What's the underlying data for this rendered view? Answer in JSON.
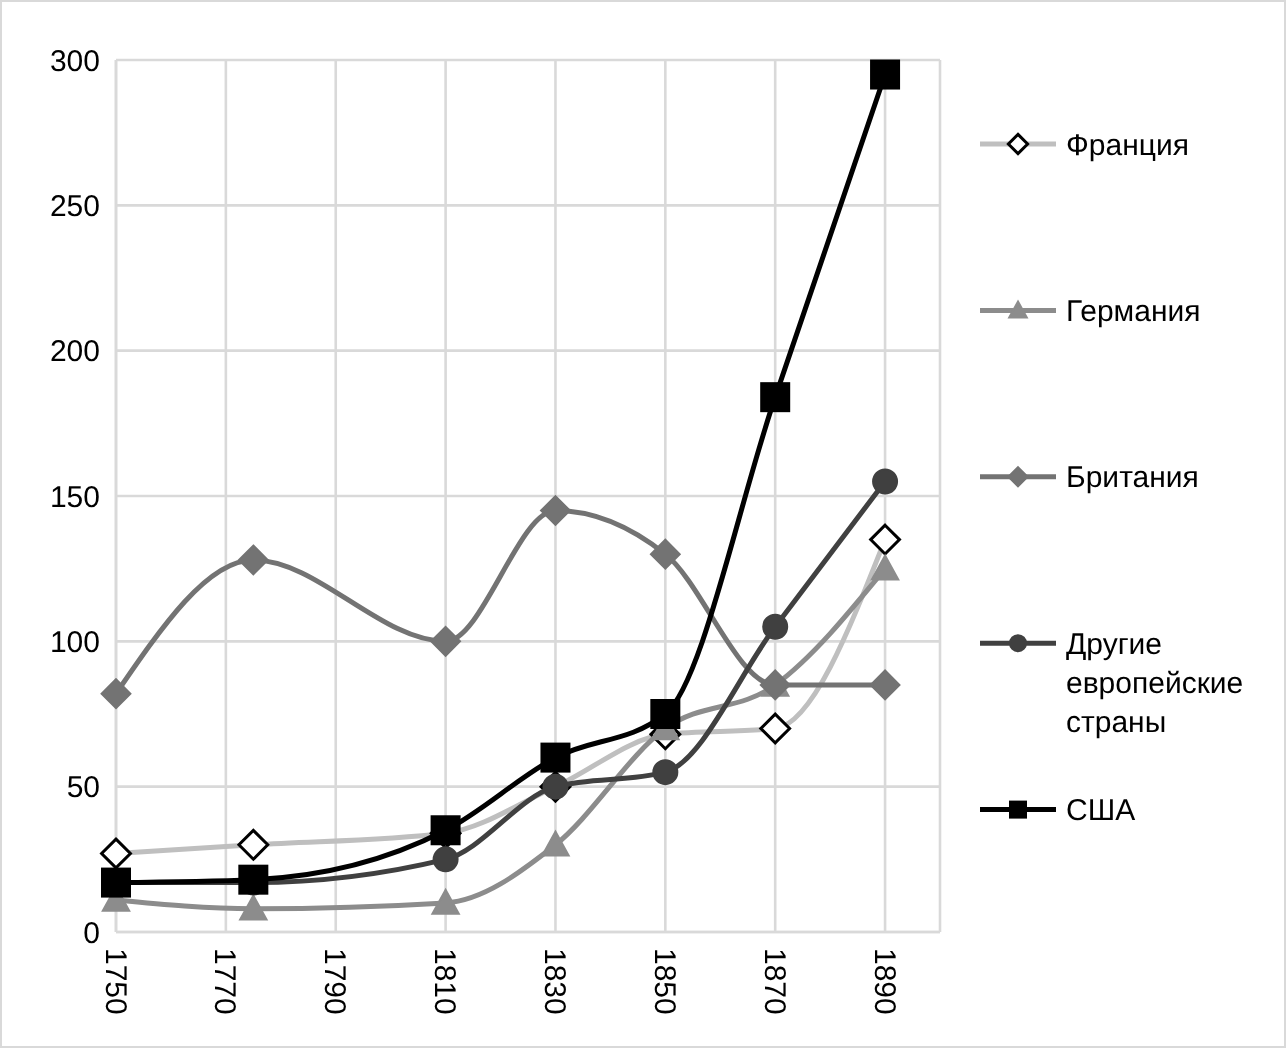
{
  "chart_data": {
    "type": "line",
    "xlim": [
      1750,
      1900
    ],
    "xticks": [
      1750,
      1770,
      1790,
      1810,
      1830,
      1850,
      1870,
      1890
    ],
    "ylim": [
      0,
      300
    ],
    "yticks": [
      0,
      50,
      100,
      150,
      200,
      250,
      300
    ],
    "grid": true,
    "legend": "right",
    "x": [
      1750,
      1775,
      1810,
      1830,
      1850,
      1870,
      1890
    ],
    "series": [
      {
        "name": "Франция",
        "color": "#bfbfbf",
        "marker": "diamond",
        "values": [
          27,
          30,
          34,
          50,
          68,
          70,
          135
        ]
      },
      {
        "name": "Германия",
        "color": "#8c8c8c",
        "marker": "triangle",
        "values": [
          11,
          8,
          10,
          30,
          70,
          85,
          125
        ]
      },
      {
        "name": "Британия",
        "color": "#737373",
        "marker": "diamond",
        "values": [
          82,
          128,
          100,
          145,
          130,
          85,
          85
        ]
      },
      {
        "name": "Другие европейские страны",
        "color": "#404040",
        "marker": "circle",
        "values": [
          17,
          17,
          25,
          50,
          55,
          105,
          155
        ]
      },
      {
        "name": "США",
        "color": "#000000",
        "marker": "square",
        "values": [
          17,
          18,
          35,
          60,
          75,
          184,
          295
        ]
      }
    ]
  }
}
